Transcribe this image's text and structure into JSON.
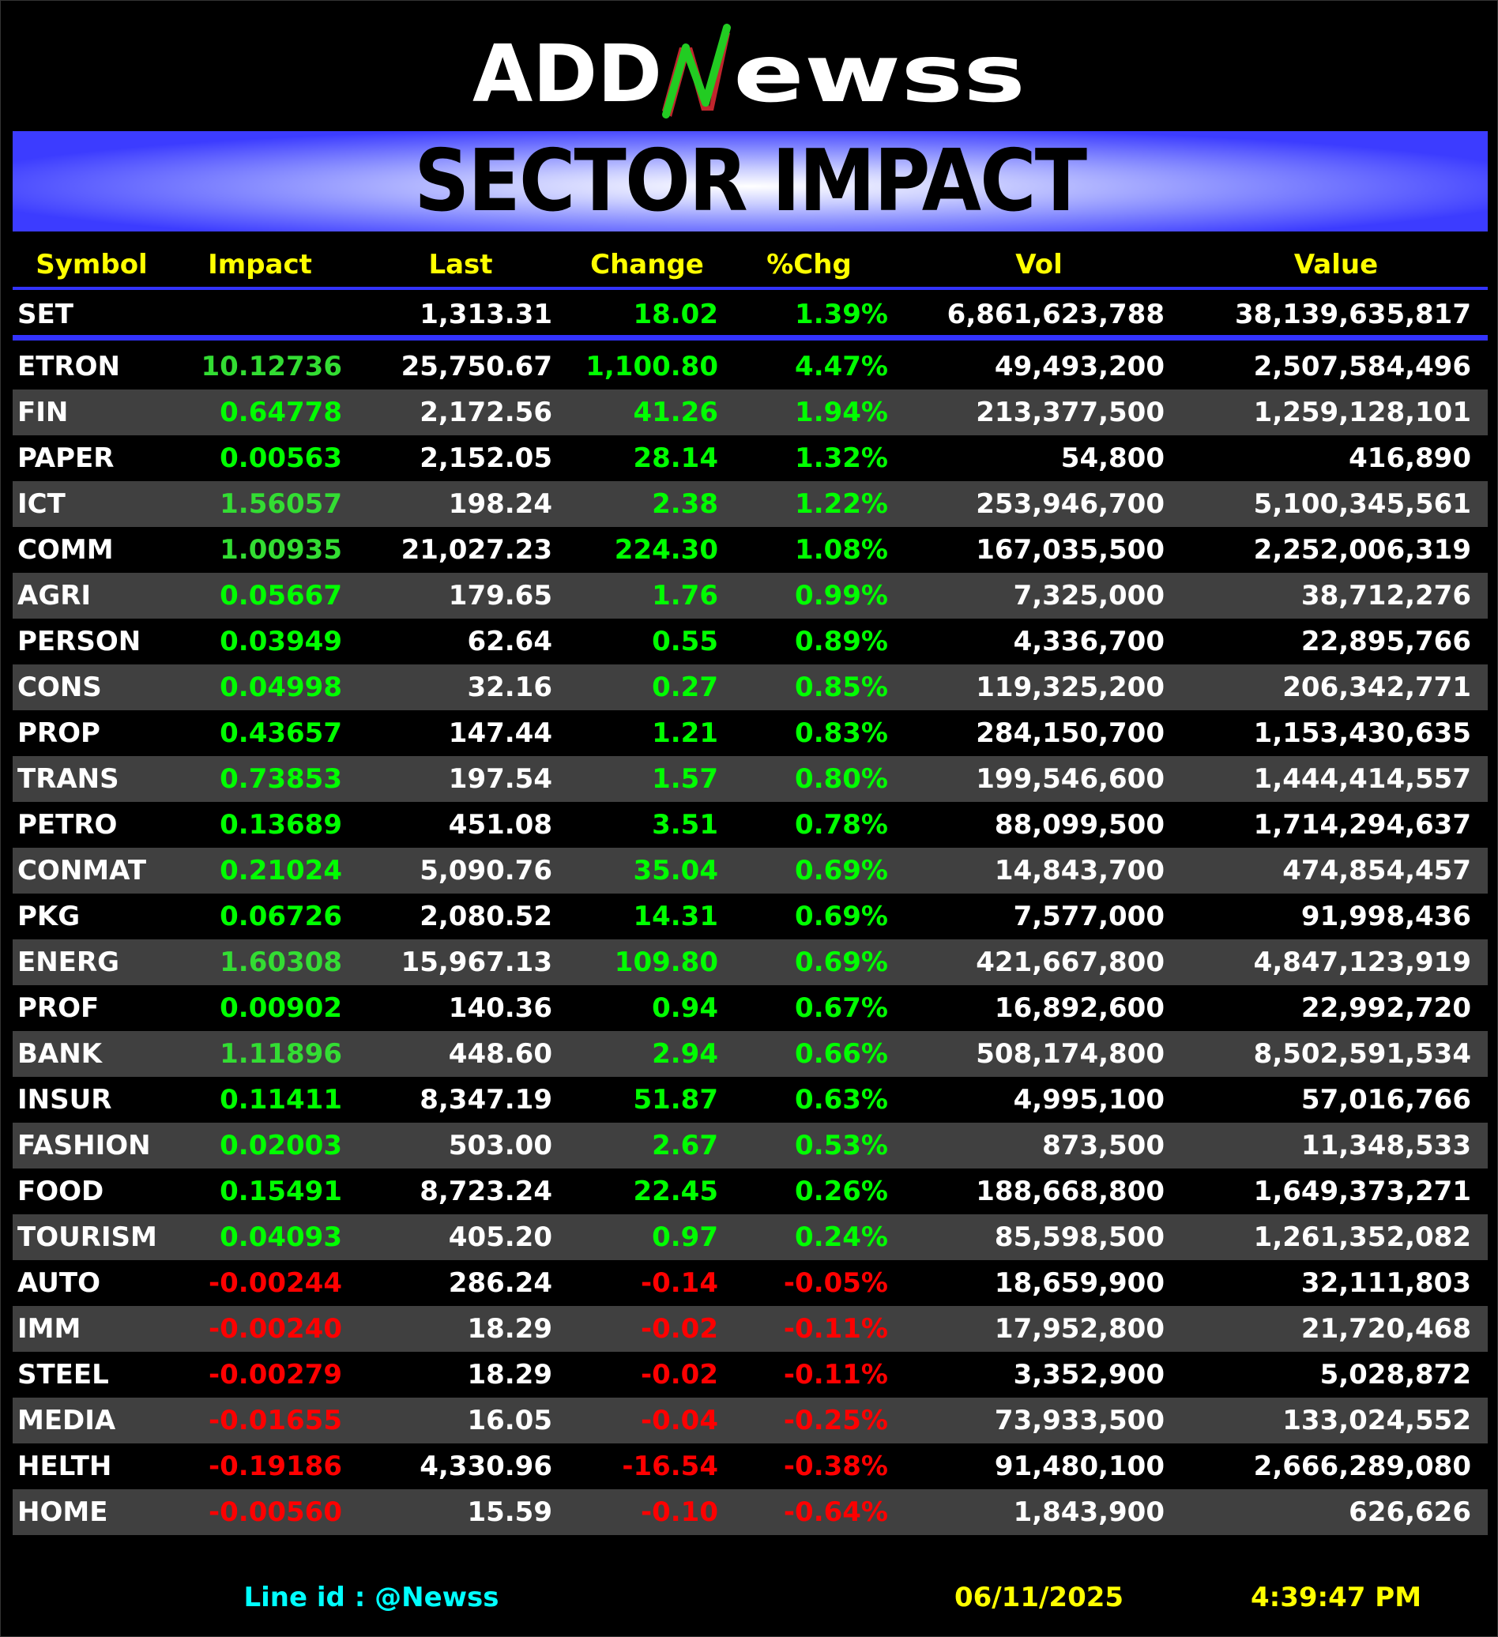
{
  "logo": {
    "text": "ADDNewss"
  },
  "banner": {
    "title": "SECTOR IMPACT"
  },
  "columns": [
    "Symbol",
    "Impact",
    "Last",
    "Change",
    "%Chg",
    "Vol",
    "Value"
  ],
  "index_row": {
    "symbol": "SET",
    "impact": "",
    "last": "1,313.31",
    "change": "18.02",
    "pct": "1.39%",
    "vol": "6,861,623,788",
    "value": "38,139,635,817"
  },
  "rows": [
    {
      "symbol": "ETRON",
      "impact": "10.12736",
      "last": "25,750.67",
      "change": "1,100.80",
      "pct": "4.47%",
      "vol": "49,493,200",
      "value": "2,507,584,496"
    },
    {
      "symbol": "FIN",
      "impact": "0.64778",
      "last": "2,172.56",
      "change": "41.26",
      "pct": "1.94%",
      "vol": "213,377,500",
      "value": "1,259,128,101"
    },
    {
      "symbol": "PAPER",
      "impact": "0.00563",
      "last": "2,152.05",
      "change": "28.14",
      "pct": "1.32%",
      "vol": "54,800",
      "value": "416,890"
    },
    {
      "symbol": "ICT",
      "impact": "1.56057",
      "last": "198.24",
      "change": "2.38",
      "pct": "1.22%",
      "vol": "253,946,700",
      "value": "5,100,345,561"
    },
    {
      "symbol": "COMM",
      "impact": "1.00935",
      "last": "21,027.23",
      "change": "224.30",
      "pct": "1.08%",
      "vol": "167,035,500",
      "value": "2,252,006,319"
    },
    {
      "symbol": "AGRI",
      "impact": "0.05667",
      "last": "179.65",
      "change": "1.76",
      "pct": "0.99%",
      "vol": "7,325,000",
      "value": "38,712,276"
    },
    {
      "symbol": "PERSON",
      "impact": "0.03949",
      "last": "62.64",
      "change": "0.55",
      "pct": "0.89%",
      "vol": "4,336,700",
      "value": "22,895,766"
    },
    {
      "symbol": "CONS",
      "impact": "0.04998",
      "last": "32.16",
      "change": "0.27",
      "pct": "0.85%",
      "vol": "119,325,200",
      "value": "206,342,771"
    },
    {
      "symbol": "PROP",
      "impact": "0.43657",
      "last": "147.44",
      "change": "1.21",
      "pct": "0.83%",
      "vol": "284,150,700",
      "value": "1,153,430,635"
    },
    {
      "symbol": "TRANS",
      "impact": "0.73853",
      "last": "197.54",
      "change": "1.57",
      "pct": "0.80%",
      "vol": "199,546,600",
      "value": "1,444,414,557"
    },
    {
      "symbol": "PETRO",
      "impact": "0.13689",
      "last": "451.08",
      "change": "3.51",
      "pct": "0.78%",
      "vol": "88,099,500",
      "value": "1,714,294,637"
    },
    {
      "symbol": "CONMAT",
      "impact": "0.21024",
      "last": "5,090.76",
      "change": "35.04",
      "pct": "0.69%",
      "vol": "14,843,700",
      "value": "474,854,457"
    },
    {
      "symbol": "PKG",
      "impact": "0.06726",
      "last": "2,080.52",
      "change": "14.31",
      "pct": "0.69%",
      "vol": "7,577,000",
      "value": "91,998,436"
    },
    {
      "symbol": "ENERG",
      "impact": "1.60308",
      "last": "15,967.13",
      "change": "109.80",
      "pct": "0.69%",
      "vol": "421,667,800",
      "value": "4,847,123,919"
    },
    {
      "symbol": "PROF",
      "impact": "0.00902",
      "last": "140.36",
      "change": "0.94",
      "pct": "0.67%",
      "vol": "16,892,600",
      "value": "22,992,720"
    },
    {
      "symbol": "BANK",
      "impact": "1.11896",
      "last": "448.60",
      "change": "2.94",
      "pct": "0.66%",
      "vol": "508,174,800",
      "value": "8,502,591,534"
    },
    {
      "symbol": "INSUR",
      "impact": "0.11411",
      "last": "8,347.19",
      "change": "51.87",
      "pct": "0.63%",
      "vol": "4,995,100",
      "value": "57,016,766"
    },
    {
      "symbol": "FASHION",
      "impact": "0.02003",
      "last": "503.00",
      "change": "2.67",
      "pct": "0.53%",
      "vol": "873,500",
      "value": "11,348,533"
    },
    {
      "symbol": "FOOD",
      "impact": "0.15491",
      "last": "8,723.24",
      "change": "22.45",
      "pct": "0.26%",
      "vol": "188,668,800",
      "value": "1,649,373,271"
    },
    {
      "symbol": "TOURISM",
      "impact": "0.04093",
      "last": "405.20",
      "change": "0.97",
      "pct": "0.24%",
      "vol": "85,598,500",
      "value": "1,261,352,082"
    },
    {
      "symbol": "AUTO",
      "impact": "-0.00244",
      "last": "286.24",
      "change": "-0.14",
      "pct": "-0.05%",
      "vol": "18,659,900",
      "value": "32,111,803"
    },
    {
      "symbol": "IMM",
      "impact": "-0.00240",
      "last": "18.29",
      "change": "-0.02",
      "pct": "-0.11%",
      "vol": "17,952,800",
      "value": "21,720,468"
    },
    {
      "symbol": "STEEL",
      "impact": "-0.00279",
      "last": "18.29",
      "change": "-0.02",
      "pct": "-0.11%",
      "vol": "3,352,900",
      "value": "5,028,872"
    },
    {
      "symbol": "MEDIA",
      "impact": "-0.01655",
      "last": "16.05",
      "change": "-0.04",
      "pct": "-0.25%",
      "vol": "73,933,500",
      "value": "133,024,552"
    },
    {
      "symbol": "HELTH",
      "impact": "-0.19186",
      "last": "4,330.96",
      "change": "-16.54",
      "pct": "-0.38%",
      "vol": "91,480,100",
      "value": "2,666,289,080"
    },
    {
      "symbol": "HOME",
      "impact": "-0.00560",
      "last": "15.59",
      "change": "-0.10",
      "pct": "-0.64%",
      "vol": "1,843,900",
      "value": "626,626"
    }
  ],
  "footer": {
    "line_id": "Line id  : @Newss",
    "date": "06/11/2025",
    "time": "4:39:47 PM"
  },
  "colors": {
    "positive": "#00ff00",
    "negative": "#ff0000",
    "header": "#ffff00",
    "accent": "#3333ff",
    "footer_id": "#00ffff"
  }
}
